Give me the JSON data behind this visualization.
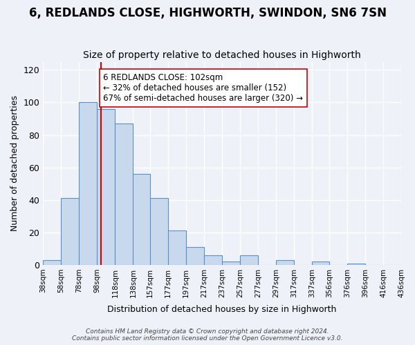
{
  "title": "6, REDLANDS CLOSE, HIGHWORTH, SWINDON, SN6 7SN",
  "subtitle": "Size of property relative to detached houses in Highworth",
  "xlabel": "Distribution of detached houses by size in Highworth",
  "ylabel": "Number of detached properties",
  "bar_edges": [
    38,
    58,
    78,
    98,
    118,
    138,
    157,
    177,
    197,
    217,
    237,
    257,
    277,
    297,
    317,
    337,
    356,
    376,
    396,
    416,
    436
  ],
  "bar_heights": [
    3,
    41,
    100,
    96,
    87,
    56,
    41,
    21,
    11,
    6,
    2,
    6,
    0,
    3,
    0,
    2,
    0,
    1,
    0,
    0
  ],
  "bar_color": "#c9d9ed",
  "bar_edge_color": "#5b8fc9",
  "vline_x": 102,
  "vline_color": "#cc0000",
  "annotation_text": "6 REDLANDS CLOSE: 102sqm\n← 32% of detached houses are smaller (152)\n67% of semi-detached houses are larger (320) →",
  "annotation_box_color": "#ffffff",
  "annotation_box_edge": "#cc0000",
  "ylim": [
    0,
    125
  ],
  "tick_labels": [
    "38sqm",
    "58sqm",
    "78sqm",
    "98sqm",
    "118sqm",
    "138sqm",
    "157sqm",
    "177sqm",
    "197sqm",
    "217sqm",
    "237sqm",
    "257sqm",
    "277sqm",
    "297sqm",
    "317sqm",
    "337sqm",
    "356sqm",
    "376sqm",
    "396sqm",
    "416sqm",
    "436sqm"
  ],
  "footer_line1": "Contains HM Land Registry data © Crown copyright and database right 2024.",
  "footer_line2": "Contains public sector information licensed under the Open Government Licence v3.0.",
  "bg_color": "#eef2f8",
  "plot_bg_color": "#eef2f8",
  "grid_color": "#ffffff",
  "title_fontsize": 12,
  "subtitle_fontsize": 10
}
